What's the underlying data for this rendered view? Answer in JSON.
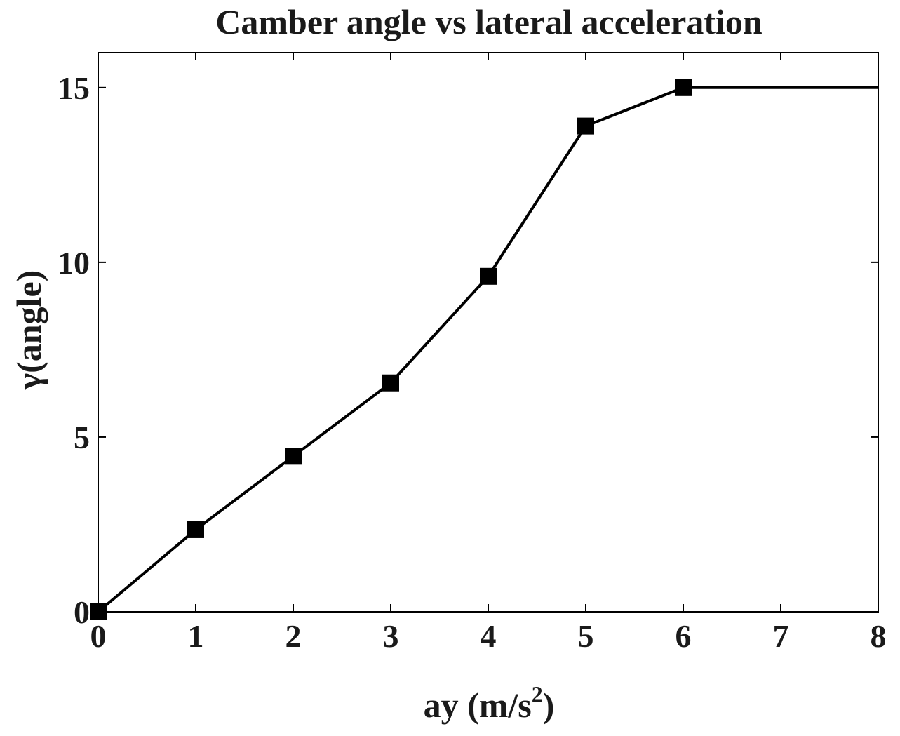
{
  "chart_data": {
    "type": "line",
    "title": "Camber angle vs lateral acceleration",
    "xlabel": "ay (m/s",
    "xlabel_superscript": "2",
    "xlabel_suffix": ")",
    "ylabel": "γ(angle)",
    "xlim": [
      0,
      8
    ],
    "ylim": [
      0,
      16
    ],
    "x_ticks": [
      0,
      1,
      2,
      3,
      4,
      5,
      6,
      7,
      8
    ],
    "y_ticks": [
      0,
      5,
      10,
      15
    ],
    "grid": false,
    "series": [
      {
        "x": [
          0,
          1,
          2,
          3,
          4,
          5,
          6,
          8
        ],
        "y": [
          0,
          2.35,
          4.45,
          6.55,
          9.6,
          13.9,
          15.0,
          15.0
        ],
        "markers_x": [
          0,
          1,
          2,
          3,
          4,
          5,
          6
        ],
        "marker": "square",
        "color": "#000000"
      }
    ]
  }
}
